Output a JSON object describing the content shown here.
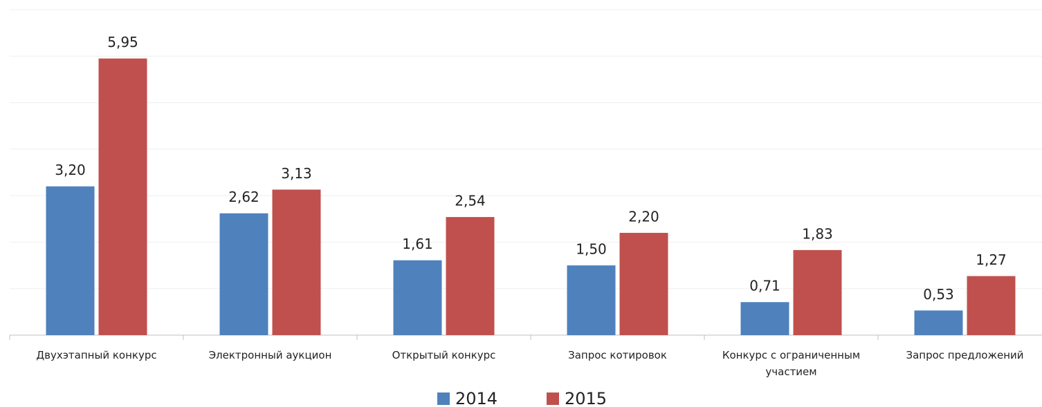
{
  "chart_data": {
    "type": "bar",
    "categories": [
      "Двухэтапный конкурс",
      "Электронный аукцион",
      "Открытый конкурс",
      "Запрос котировок",
      "Конкурс с ограниченным участием",
      "Запрос предложений"
    ],
    "series": [
      {
        "name": "2014",
        "color": "#4f81bd",
        "values": [
          3.2,
          2.62,
          1.61,
          1.5,
          0.71,
          0.53
        ],
        "value_labels": [
          "3,20",
          "2,62",
          "1,61",
          "1,50",
          "0,71",
          "0,53"
        ]
      },
      {
        "name": "2015",
        "color": "#c0504d",
        "values": [
          5.95,
          3.13,
          2.54,
          2.2,
          1.83,
          1.27
        ],
        "value_labels": [
          "5,95",
          "3,13",
          "2,54",
          "2,20",
          "1,83",
          "1,27"
        ]
      }
    ],
    "ylim": [
      0,
      7
    ],
    "yticks": [
      0,
      1,
      2,
      3,
      4,
      5,
      6,
      7
    ],
    "grid": true,
    "legend": "bottom"
  }
}
